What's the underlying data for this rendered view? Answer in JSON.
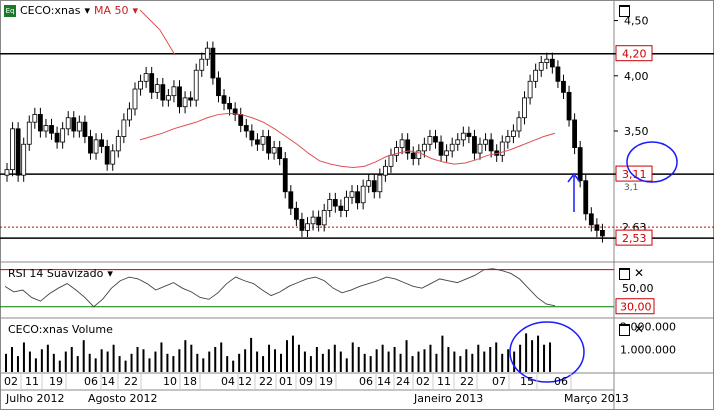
{
  "main_chart": {
    "symbol": "CECO:xnas",
    "indicator": "MA 50",
    "price_axis": {
      "min": 2.35,
      "max": 4.65,
      "ticks": [
        "4,50",
        "4,00",
        "3,50"
      ]
    },
    "levels": [
      {
        "label": "4,20",
        "value": 4.2,
        "style": "black-line"
      },
      {
        "label": "3,11",
        "value": 3.11,
        "style": "black-line"
      },
      {
        "label": "2,63",
        "value": 2.63,
        "style": "red-dotted"
      },
      {
        "label": "2,53",
        "value": 2.53,
        "style": "black-line"
      }
    ],
    "partial_label": "3,1",
    "colors": {
      "up": "#008000",
      "down": "#cc0000",
      "ma": "#e05050",
      "annotation": "#1a1aff"
    }
  },
  "rsi_panel": {
    "title": "RSI 14 Suavizado",
    "axis": {
      "min": 20,
      "max": 75,
      "ticks": [
        "50,00"
      ]
    },
    "levels": [
      {
        "label": "70",
        "value": 70,
        "color": "#cc0000"
      },
      {
        "label": "30,00",
        "value": 30,
        "color": "#008000"
      }
    ]
  },
  "volume_panel": {
    "title": "CECO:xnas Volume",
    "axis": {
      "max": 2200000,
      "ticks": [
        "2.000.000",
        "1.000.000"
      ]
    }
  },
  "x_axis": {
    "days": [
      "02",
      "11",
      "19",
      "06",
      "14",
      "22",
      "10",
      "18",
      "04",
      "12",
      "22",
      "01",
      "09",
      "19",
      "06",
      "14",
      "24",
      "02",
      "11",
      "22",
      "07",
      "15",
      "06"
    ],
    "months": [
      "Julho 2012",
      "Agosto 2012",
      "Janeiro 2013",
      "Março 2013"
    ]
  },
  "chart_data": {
    "type": "candlestick",
    "series_names": [
      "CECO:xnas",
      "MA 50",
      "RSI 14 Suavizado",
      "CECO:xnas Volume"
    ],
    "closes": [
      3.15,
      3.52,
      3.1,
      3.38,
      3.58,
      3.65,
      3.5,
      3.55,
      3.48,
      3.4,
      3.52,
      3.62,
      3.5,
      3.58,
      3.45,
      3.3,
      3.42,
      3.36,
      3.2,
      3.32,
      3.45,
      3.6,
      3.7,
      3.88,
      3.95,
      4.02,
      3.85,
      3.92,
      3.78,
      3.82,
      3.9,
      3.72,
      3.8,
      3.78,
      4.05,
      4.15,
      4.25,
      3.98,
      3.82,
      3.75,
      3.7,
      3.65,
      3.55,
      3.5,
      3.42,
      3.38,
      3.45,
      3.3,
      3.35,
      3.25,
      2.95,
      2.8,
      2.7,
      2.6,
      2.66,
      2.72,
      2.65,
      2.78,
      2.88,
      2.82,
      2.78,
      2.9,
      2.95,
      2.85,
      3.0,
      3.05,
      2.95,
      3.1,
      3.18,
      3.28,
      3.35,
      3.42,
      3.3,
      3.25,
      3.32,
      3.38,
      3.45,
      3.4,
      3.28,
      3.32,
      3.38,
      3.42,
      3.48,
      3.45,
      3.3,
      3.38,
      3.42,
      3.32,
      3.28,
      3.4,
      3.45,
      3.5,
      3.62,
      3.8,
      3.95,
      4.05,
      4.12,
      4.15,
      4.08,
      3.95,
      3.85,
      3.6,
      3.35,
      3.05,
      2.75,
      2.65,
      2.6,
      2.55
    ],
    "ma50": [
      3.42,
      3.45,
      3.48,
      3.52,
      3.55,
      3.58,
      3.62,
      3.65,
      3.66,
      3.65,
      3.62,
      3.58,
      3.52,
      3.45,
      3.38,
      3.3,
      3.23,
      3.2,
      3.18,
      3.17,
      3.18,
      3.22,
      3.27,
      3.3,
      3.32,
      3.3,
      3.25,
      3.22,
      3.2,
      3.21,
      3.24,
      3.28,
      3.3,
      3.33,
      3.37,
      3.41,
      3.45,
      3.48
    ],
    "rsi": [
      52,
      46,
      48,
      40,
      36,
      44,
      50,
      55,
      48,
      40,
      30,
      38,
      50,
      58,
      62,
      60,
      55,
      48,
      52,
      56,
      50,
      46,
      40,
      38,
      45,
      55,
      62,
      58,
      55,
      48,
      42,
      46,
      52,
      56,
      60,
      62,
      58,
      50,
      45,
      48,
      52,
      55,
      58,
      62,
      60,
      56,
      52,
      50,
      55,
      60,
      58,
      56,
      60,
      64,
      70,
      71,
      69,
      66,
      60,
      50,
      40,
      33,
      31
    ],
    "volume_m": [
      0.8,
      1.1,
      0.7,
      1.3,
      0.9,
      0.6,
      1.0,
      1.2,
      0.8,
      0.5,
      0.9,
      1.1,
      0.7,
      1.4,
      0.8,
      0.6,
      1.0,
      0.9,
      1.2,
      0.7,
      0.5,
      0.8,
      1.1,
      1.0,
      0.6,
      0.9,
      1.3,
      0.8,
      0.7,
      1.0,
      1.4,
      1.2,
      0.8,
      0.6,
      0.9,
      1.1,
      1.3,
      0.7,
      0.5,
      0.8,
      1.0,
      1.5,
      0.9,
      0.7,
      1.2,
      1.0,
      0.8,
      1.4,
      1.6,
      1.2,
      0.9,
      0.7,
      1.1,
      0.8,
      1.0,
      1.2,
      0.9,
      0.6,
      1.3,
      1.1,
      0.8,
      0.7,
      1.0,
      1.2,
      0.9,
      1.1,
      0.8,
      1.4,
      0.7,
      0.9,
      1.0,
      1.2,
      0.8,
      1.6,
      1.1,
      0.9,
      0.7,
      1.0,
      0.8,
      1.2,
      0.9,
      1.1,
      1.3,
      0.8,
      1.0,
      0.9,
      1.2,
      1.7,
      1.4,
      1.6,
      1.2,
      1.3
    ]
  }
}
